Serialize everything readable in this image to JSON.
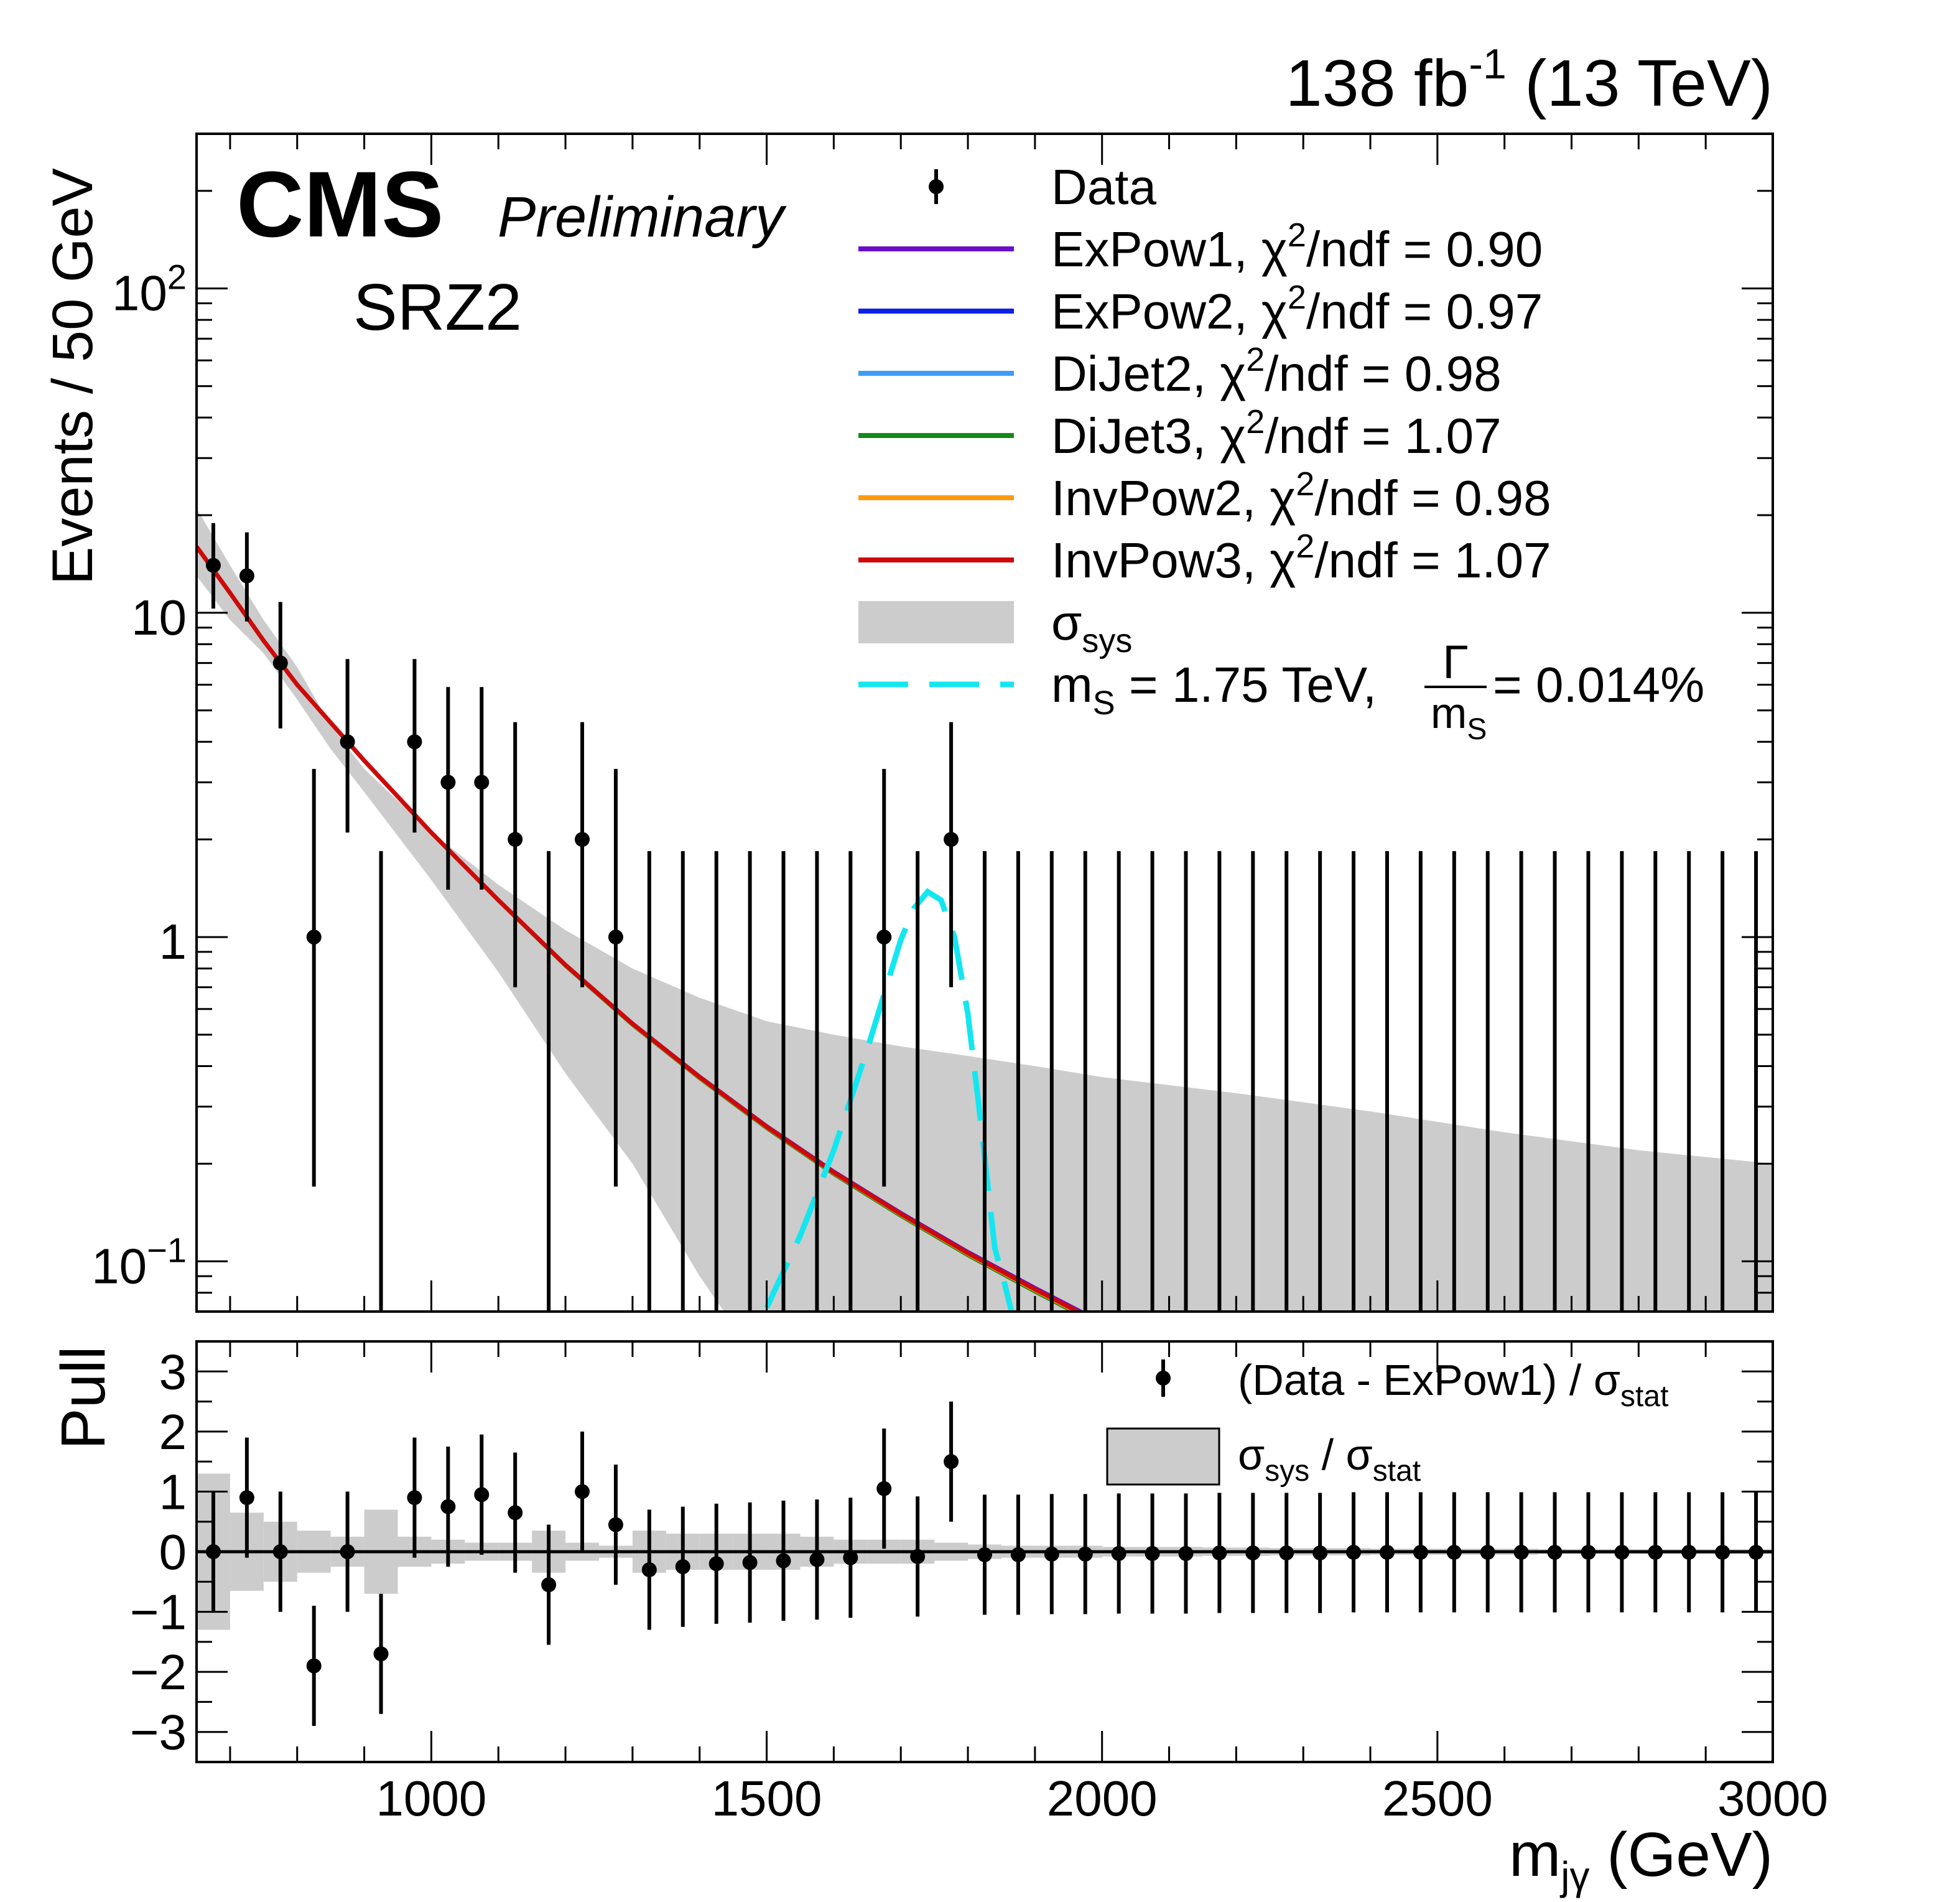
{
  "header": {
    "lumi_text": "138 fb",
    "lumi_exp": "-1",
    "energy_text": " (13 TeV)",
    "cms_label": "CMS",
    "preliminary_label": "Preliminary",
    "region_label": "SRZ2"
  },
  "chart_data": [
    {
      "panel": "main",
      "type": "scatter",
      "ylabel": "Events / 50 GeV",
      "xlim": [
        650,
        3000
      ],
      "ylim": [
        0.07,
        300
      ],
      "yscale": "log",
      "y_ticks": [
        {
          "value": 100,
          "base": "10",
          "exp": "2"
        },
        {
          "value": 10,
          "base": "10",
          "exp": ""
        },
        {
          "value": 1,
          "base": "1",
          "exp": ""
        },
        {
          "value": 0.1,
          "base": "10",
          "exp": "−1"
        }
      ],
      "legend_position": "top-right",
      "legend": [
        {
          "key": "data",
          "label": "Data"
        },
        {
          "key": "expow1",
          "label": "ExPow1, χ",
          "sup": "2",
          "tail": "/ndf = 0.90",
          "color": "#6a0dca"
        },
        {
          "key": "expow2",
          "label": "ExPow2, χ",
          "sup": "2",
          "tail": "/ndf = 0.97",
          "color": "#0b21e8"
        },
        {
          "key": "dijet2",
          "label": "DiJet2, χ",
          "sup": "2",
          "tail": "/ndf = 0.98",
          "color": "#3d9df5"
        },
        {
          "key": "dijet3",
          "label": "DiJet3, χ",
          "sup": "2",
          "tail": "/ndf = 1.07",
          "color": "#158a15"
        },
        {
          "key": "invpow2",
          "label": "InvPow2, χ",
          "sup": "2",
          "tail": "/ndf = 0.98",
          "color": "#ff9a10"
        },
        {
          "key": "invpow3",
          "label": "InvPow3, χ",
          "sup": "2",
          "tail": "/ndf = 1.07",
          "color": "#cc0a0a"
        },
        {
          "key": "sys",
          "label": "σ",
          "sub": "sys",
          "color": "#cccccc"
        },
        {
          "key": "signal",
          "label": "m",
          "sub": "S",
          "tail": " = 1.75 TeV, ",
          "frac_num": "Γ",
          "frac_den": "m",
          "frac_den_sub": "S",
          "tail2": " = 0.014%",
          "color": "#14e6f0"
        }
      ],
      "data": {
        "x": [
          675,
          725,
          775,
          825,
          875,
          925,
          975,
          1025,
          1075,
          1125,
          1175,
          1225,
          1275,
          1325,
          1375,
          1425,
          1475,
          1525,
          1575,
          1625,
          1675,
          1725,
          1775,
          1825,
          1875,
          1925,
          1975,
          2025,
          2075,
          2125,
          2175,
          2225,
          2275,
          2325,
          2375,
          2425,
          2475,
          2525,
          2575,
          2625,
          2675,
          2725,
          2775,
          2825,
          2875,
          2925,
          2975
        ],
        "y": [
          14,
          13,
          7,
          1,
          4,
          0,
          4,
          3,
          3,
          2,
          0,
          2,
          1,
          0,
          0,
          0,
          0,
          0,
          0,
          0,
          1,
          0,
          2,
          0,
          0,
          0,
          0,
          0,
          0,
          0,
          0,
          0,
          0,
          0,
          0,
          0,
          0,
          0,
          0,
          0,
          0,
          0,
          0,
          0,
          0,
          0,
          0
        ],
        "y_err_low": [
          3.7,
          3.6,
          2.6,
          0.83,
          1.9,
          0,
          1.9,
          1.6,
          1.6,
          1.3,
          0,
          1.3,
          0.83,
          0,
          0,
          0,
          0,
          0,
          0,
          0,
          0.83,
          0,
          1.3,
          0,
          0,
          0,
          0,
          0,
          0,
          0,
          0,
          0,
          0,
          0,
          0,
          0,
          0,
          0,
          0,
          0,
          0,
          0,
          0,
          0,
          0,
          0,
          0
        ],
        "y_err_high": [
          4.9,
          4.7,
          3.8,
          2.3,
          3.2,
          1.84,
          3.2,
          2.9,
          2.9,
          2.6,
          1.84,
          2.6,
          2.3,
          1.84,
          1.84,
          1.84,
          1.84,
          1.84,
          1.84,
          1.84,
          2.3,
          1.84,
          2.6,
          1.84,
          1.84,
          1.84,
          1.84,
          1.84,
          1.84,
          1.84,
          1.84,
          1.84,
          1.84,
          1.84,
          1.84,
          1.84,
          1.84,
          1.84,
          1.84,
          1.84,
          1.84,
          1.84,
          1.84,
          1.84,
          1.84,
          1.84,
          1.84
        ]
      },
      "fit_curve": {
        "x": [
          650,
          700,
          750,
          800,
          900,
          1000,
          1100,
          1200,
          1300,
          1400,
          1500,
          1600,
          1700,
          1800,
          1900,
          2000,
          2040
        ],
        "y": [
          16,
          11.5,
          8.2,
          6.0,
          3.5,
          2.1,
          1.3,
          0.82,
          0.54,
          0.37,
          0.26,
          0.188,
          0.14,
          0.106,
          0.082,
          0.064,
          0.058
        ]
      },
      "sys_band": {
        "x": [
          650,
          700,
          750,
          800,
          850,
          900,
          1000,
          1100,
          1200,
          1300,
          1400,
          1500,
          1600,
          1700,
          1800,
          1900,
          2000,
          2200,
          2400,
          2600,
          2800,
          3000
        ],
        "low": [
          13,
          9.5,
          7.5,
          5.4,
          3.8,
          2.8,
          1.5,
          0.78,
          0.38,
          0.2,
          0.09,
          0.045,
          0.03,
          0.03,
          0.03,
          0.03,
          0.03,
          0.03,
          0.03,
          0.03,
          0.03,
          0.03
        ],
        "high": [
          21,
          14,
          9.5,
          6.8,
          4.5,
          3.3,
          2.1,
          1.45,
          1.05,
          0.8,
          0.65,
          0.55,
          0.5,
          0.46,
          0.43,
          0.4,
          0.37,
          0.33,
          0.29,
          0.25,
          0.22,
          0.2
        ]
      },
      "signal_curve": {
        "x": [
          1500,
          1550,
          1600,
          1650,
          1680,
          1700,
          1720,
          1740,
          1760,
          1780,
          1800,
          1820,
          1840,
          1855,
          1865
        ],
        "y": [
          0.072,
          0.12,
          0.22,
          0.45,
          0.72,
          0.98,
          1.23,
          1.38,
          1.3,
          1.0,
          0.58,
          0.26,
          0.11,
          0.085,
          0.07
        ]
      }
    },
    {
      "panel": "pull",
      "type": "scatter",
      "ylabel": "Pull",
      "xlabel": "m",
      "xlabel_sub": "jγ",
      "xlabel_unit": " (GeV)",
      "xlim": [
        650,
        3000
      ],
      "ylim": [
        -3.5,
        3.5
      ],
      "x_ticks": [
        1000,
        1500,
        2000,
        2500,
        3000
      ],
      "y_ticks": [
        {
          "value": 3,
          "label": "3"
        },
        {
          "value": 2,
          "label": "2"
        },
        {
          "value": 1,
          "label": "1"
        },
        {
          "value": 0,
          "label": "0"
        },
        {
          "value": -1,
          "label": "−1"
        },
        {
          "value": -2,
          "label": "−2"
        },
        {
          "value": -3,
          "label": "−3"
        }
      ],
      "legend": [
        {
          "key": "pull",
          "label": "(Data - ExPow1) / σ",
          "sub": "stat"
        },
        {
          "key": "sys_ratio",
          "label": "σ",
          "sub": "sys",
          "mid": " / σ",
          "sub2": "stat",
          "color": "#cccccc"
        }
      ],
      "data": {
        "x": [
          675,
          725,
          775,
          825,
          875,
          925,
          975,
          1025,
          1075,
          1125,
          1175,
          1225,
          1275,
          1325,
          1375,
          1425,
          1475,
          1525,
          1575,
          1625,
          1675,
          1725,
          1775,
          1825,
          1875,
          1925,
          1975,
          2025,
          2075,
          2125,
          2175,
          2225,
          2275,
          2325,
          2375,
          2425,
          2475,
          2525,
          2575,
          2625,
          2675,
          2725,
          2775,
          2825,
          2875,
          2925,
          2975
        ],
        "y": [
          0.0,
          0.9,
          0.0,
          -1.9,
          0.0,
          -1.7,
          0.9,
          0.75,
          0.95,
          0.65,
          -0.55,
          1.0,
          0.45,
          -0.3,
          -0.25,
          -0.2,
          -0.18,
          -0.15,
          -0.13,
          -0.1,
          1.05,
          -0.08,
          1.5,
          -0.05,
          -0.05,
          -0.04,
          -0.04,
          -0.03,
          -0.03,
          -0.03,
          -0.02,
          -0.02,
          -0.02,
          -0.02,
          -0.01,
          -0.01,
          -0.01,
          -0.01,
          -0.01,
          -0.01,
          -0.01,
          -0.01,
          -0.01,
          -0.01,
          -0.01,
          -0.01,
          -0.01
        ],
        "y_err": [
          1,
          1,
          1,
          1,
          1,
          1,
          1,
          1,
          1,
          1,
          1,
          1,
          1,
          1,
          1,
          1,
          1,
          1,
          1,
          1,
          1,
          1,
          1,
          1,
          1,
          1,
          1,
          1,
          1,
          1,
          1,
          1,
          1,
          1,
          1,
          1,
          1,
          1,
          1,
          1,
          1,
          1,
          1,
          1,
          1,
          1,
          1
        ],
        "sys_ratio": [
          1.3,
          0.65,
          0.5,
          0.35,
          0.25,
          0.7,
          0.25,
          0.2,
          0.15,
          0.15,
          0.35,
          0.15,
          0.1,
          0.35,
          0.3,
          0.3,
          0.3,
          0.3,
          0.25,
          0.2,
          0.2,
          0.2,
          0.15,
          0.12,
          0.1,
          0.1,
          0.1,
          0.08,
          0.08,
          0.08,
          0.07,
          0.07,
          0.06,
          0.06,
          0.06,
          0.05,
          0.05,
          0.05,
          0.05,
          0.05,
          0.04,
          0.04,
          0.04,
          0.04,
          0.04,
          0.04,
          0.04
        ]
      }
    }
  ]
}
